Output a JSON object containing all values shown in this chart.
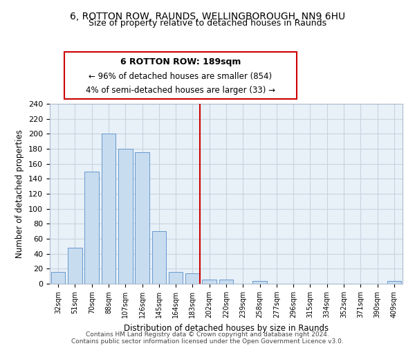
{
  "title": "6, ROTTON ROW, RAUNDS, WELLINGBOROUGH, NN9 6HU",
  "subtitle": "Size of property relative to detached houses in Raunds",
  "xlabel": "Distribution of detached houses by size in Raunds",
  "ylabel": "Number of detached properties",
  "bar_color": "#c8dcf0",
  "bar_edge_color": "#6699cc",
  "bg_color": "#e8f0f8",
  "categories": [
    "32sqm",
    "51sqm",
    "70sqm",
    "88sqm",
    "107sqm",
    "126sqm",
    "145sqm",
    "164sqm",
    "183sqm",
    "202sqm",
    "220sqm",
    "239sqm",
    "258sqm",
    "277sqm",
    "296sqm",
    "315sqm",
    "334sqm",
    "352sqm",
    "371sqm",
    "390sqm",
    "409sqm"
  ],
  "values": [
    16,
    48,
    150,
    200,
    180,
    175,
    70,
    16,
    14,
    6,
    6,
    0,
    4,
    0,
    0,
    0,
    0,
    0,
    0,
    0,
    4
  ],
  "vline_after_index": 8,
  "marker_label": "6 ROTTON ROW: 189sqm",
  "annotation_line1": "← 96% of detached houses are smaller (854)",
  "annotation_line2": "4% of semi-detached houses are larger (33) →",
  "ylim": [
    0,
    240
  ],
  "yticks": [
    0,
    20,
    40,
    60,
    80,
    100,
    120,
    140,
    160,
    180,
    200,
    220,
    240
  ],
  "vline_color": "#cc0000",
  "box_edge_color": "#cc0000",
  "grid_color": "#c8d4e0",
  "footer1": "Contains HM Land Registry data © Crown copyright and database right 2024.",
  "footer2": "Contains public sector information licensed under the Open Government Licence v3.0."
}
